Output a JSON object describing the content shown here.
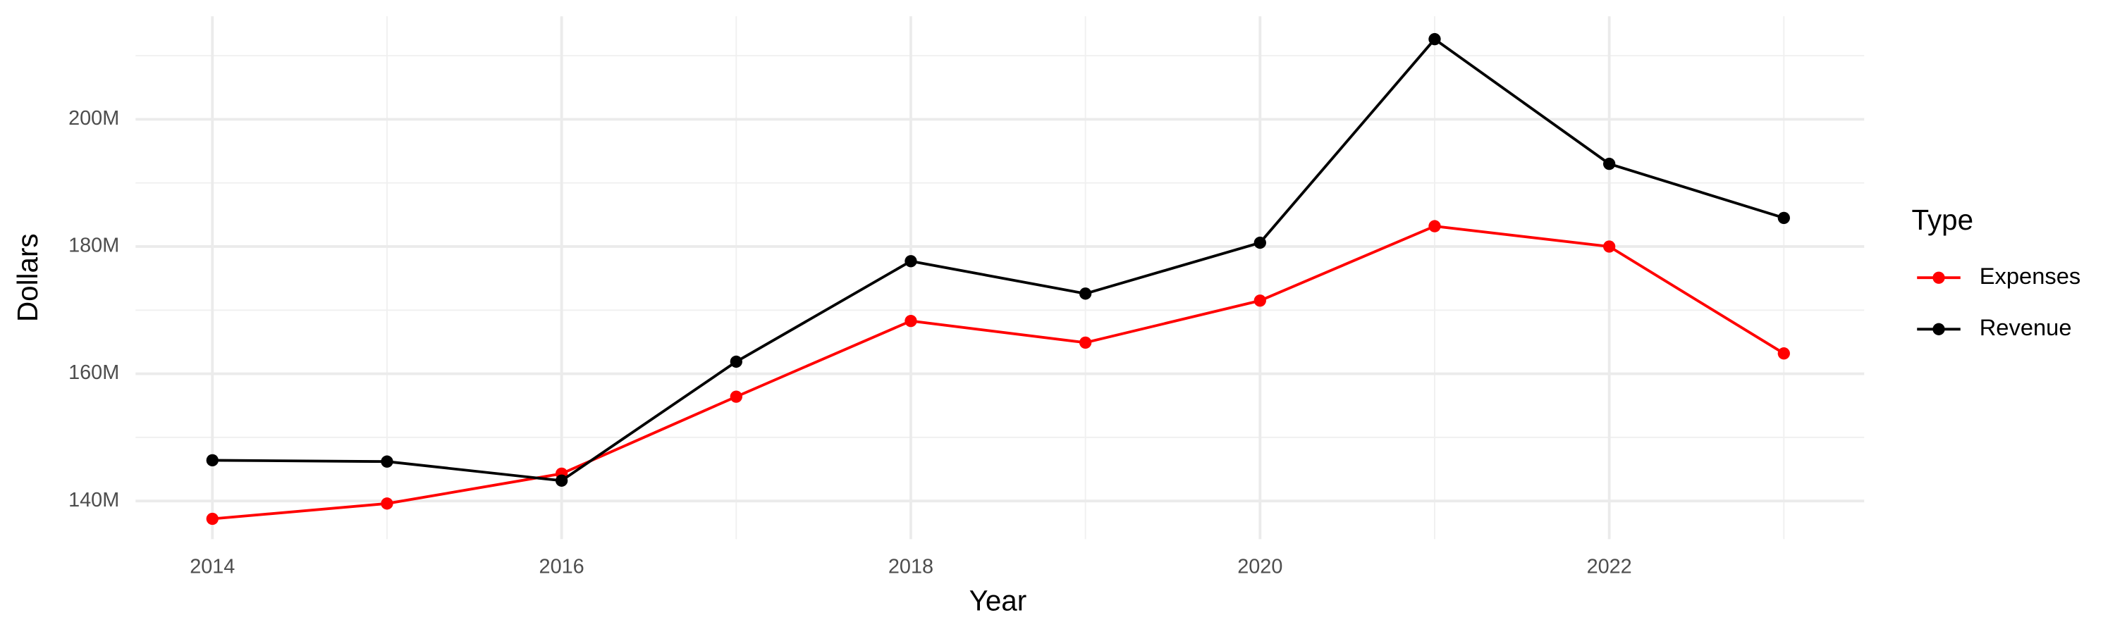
{
  "chart_data": {
    "type": "line",
    "x_label": "Year",
    "y_label": "Dollars",
    "legend_title": "Type",
    "legend_position": "right",
    "x": [
      2014,
      2015,
      2016,
      2017,
      2018,
      2019,
      2020,
      2021,
      2022,
      2023
    ],
    "series": [
      {
        "name": "Expenses",
        "color": "#ff0000",
        "values": [
          137200000,
          139600000,
          144300000,
          156400000,
          168300000,
          164900000,
          171500000,
          183200000,
          180000000,
          163200000
        ]
      },
      {
        "name": "Revenue",
        "color": "#000000",
        "values": [
          146400000,
          146200000,
          143200000,
          161900000,
          177700000,
          172600000,
          180600000,
          212600000,
          193000000,
          184500000
        ]
      }
    ],
    "xlim": [
      2013.56,
      2023.46
    ],
    "xticks": [
      2014,
      2016,
      2018,
      2020,
      2022
    ],
    "ylim": [
      134000000,
      216200000
    ],
    "yticks": [
      {
        "value": 140000000,
        "label": "140M"
      },
      {
        "value": 160000000,
        "label": "160M"
      },
      {
        "value": 180000000,
        "label": "180M"
      },
      {
        "value": 200000000,
        "label": "200M"
      }
    ],
    "grid": true
  }
}
